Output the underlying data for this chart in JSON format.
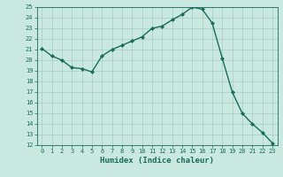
{
  "x": [
    0,
    1,
    2,
    3,
    4,
    5,
    6,
    7,
    8,
    9,
    10,
    11,
    12,
    13,
    14,
    15,
    16,
    17,
    18,
    19,
    20,
    21,
    22,
    23
  ],
  "y": [
    21.1,
    20.4,
    20.0,
    19.3,
    19.2,
    18.9,
    20.4,
    21.0,
    21.4,
    21.8,
    22.2,
    23.0,
    23.2,
    23.8,
    24.3,
    25.0,
    24.8,
    23.5,
    20.2,
    17.0,
    15.0,
    14.0,
    13.2,
    12.2
  ],
  "xlim": [
    -0.5,
    23.5
  ],
  "ylim": [
    12,
    25
  ],
  "yticks": [
    12,
    13,
    14,
    15,
    16,
    17,
    18,
    19,
    20,
    21,
    22,
    23,
    24,
    25
  ],
  "xticks": [
    0,
    1,
    2,
    3,
    4,
    5,
    6,
    7,
    8,
    9,
    10,
    11,
    12,
    13,
    14,
    15,
    16,
    17,
    18,
    19,
    20,
    21,
    22,
    23
  ],
  "xlabel": "Humidex (Indice chaleur)",
  "line_color": "#1a6b5a",
  "marker_color": "#1a6b5a",
  "bg_color": "#c8e8e0",
  "grid_color": "#a8ccc4",
  "axis_color": "#1a6b5a",
  "tick_label_color": "#1a6b5a",
  "xlabel_color": "#1a6b5a",
  "marker": "D",
  "markersize": 2.0,
  "linewidth": 1.0
}
